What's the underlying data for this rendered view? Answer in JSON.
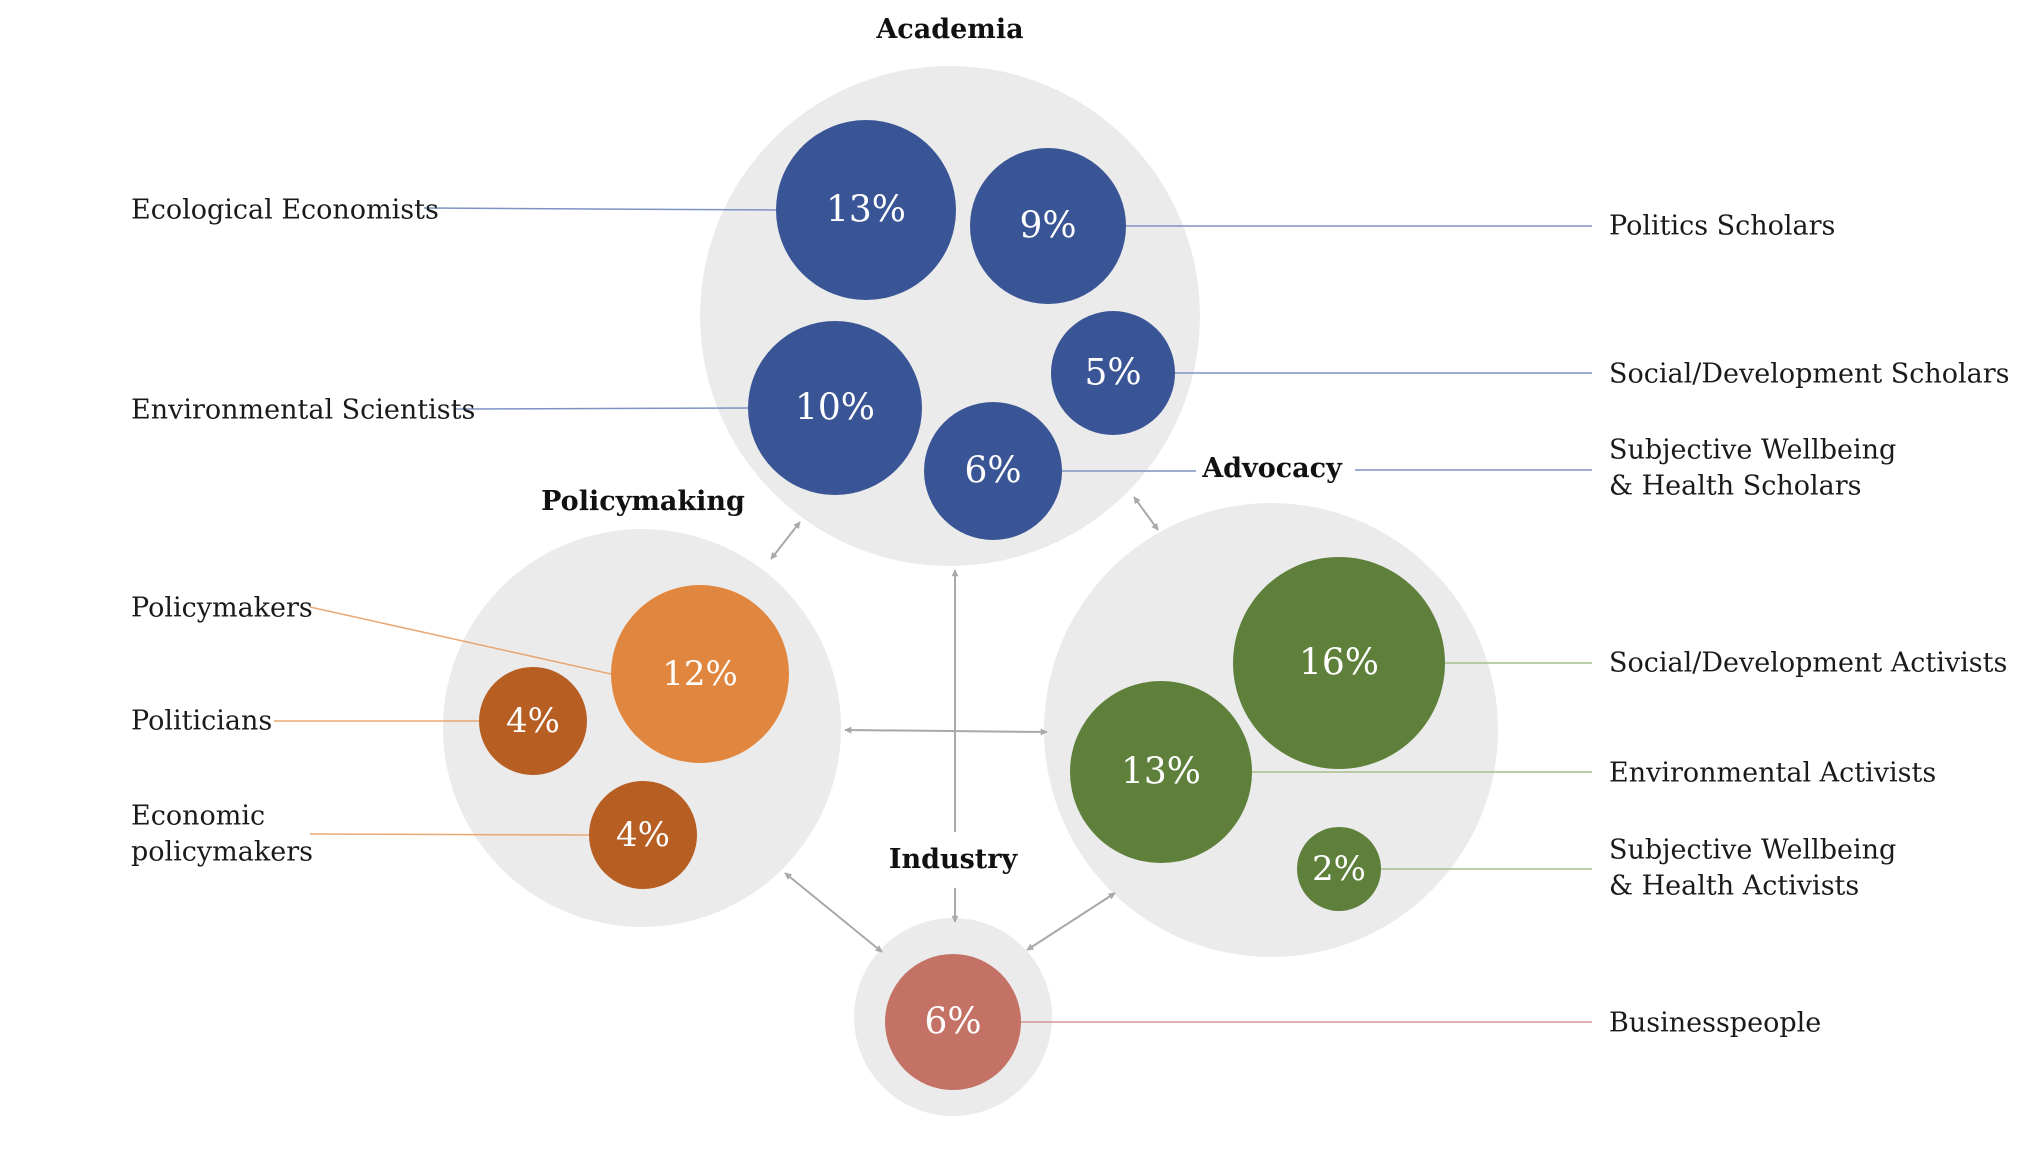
{
  "colors": {
    "academia": "#3a5596",
    "policymaking_light": "#e0863e",
    "policymaking_dark": "#b75e22",
    "advocacy": "#5f803b",
    "industry": "#c47266",
    "group_fill": "#ebebeb",
    "arrow": "#a9a9a9"
  },
  "groups": {
    "academia": {
      "title": "Academia"
    },
    "policymaking": {
      "title": "Policymaking"
    },
    "advocacy": {
      "title": "Advocacy"
    },
    "industry": {
      "title": "Industry"
    }
  },
  "bubbles": [
    {
      "group": "academia",
      "value": "13%",
      "label_lines": [
        "Ecological Economists"
      ]
    },
    {
      "group": "academia",
      "value": "9%",
      "label_lines": [
        "Politics Scholars"
      ]
    },
    {
      "group": "academia",
      "value": "10%",
      "label_lines": [
        "Environmental Scientists"
      ]
    },
    {
      "group": "academia",
      "value": "5%",
      "label_lines": [
        "Social/Development Scholars"
      ]
    },
    {
      "group": "academia",
      "value": "6%",
      "label_lines": [
        "Subjective Wellbeing",
        "& Health Scholars"
      ]
    },
    {
      "group": "policymaking",
      "value": "12%",
      "label_lines": [
        "Policymakers"
      ]
    },
    {
      "group": "policymaking",
      "value": "4%",
      "label_lines": [
        "Politicians"
      ]
    },
    {
      "group": "policymaking",
      "value": "4%",
      "label_lines": [
        "Economic",
        "policymakers"
      ]
    },
    {
      "group": "advocacy",
      "value": "16%",
      "label_lines": [
        "Social/Development Activists"
      ]
    },
    {
      "group": "advocacy",
      "value": "13%",
      "label_lines": [
        "Environmental Activists"
      ]
    },
    {
      "group": "advocacy",
      "value": "2%",
      "label_lines": [
        "Subjective Wellbeing",
        "& Health Activists"
      ]
    },
    {
      "group": "industry",
      "value": "6%",
      "label_lines": [
        "Businesspeople"
      ]
    }
  ]
}
